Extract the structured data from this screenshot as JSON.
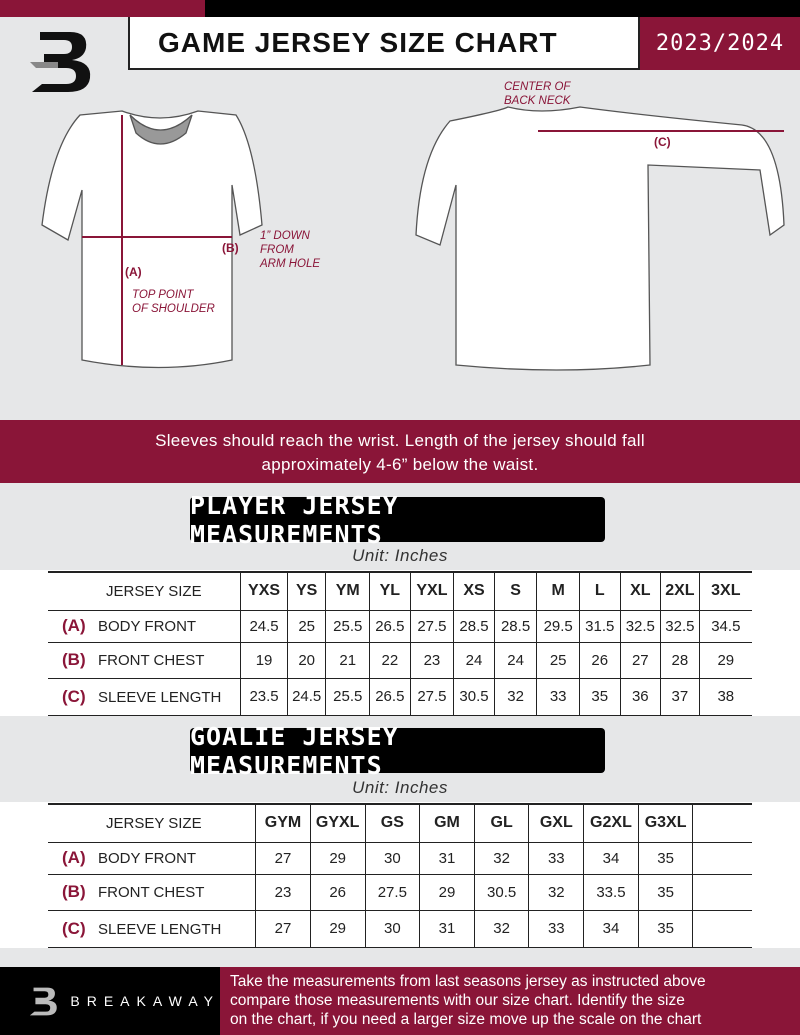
{
  "header": {
    "title": "GAME JERSEY SIZE CHART",
    "season": "2023/2024",
    "logo_letter": "B"
  },
  "diagram": {
    "a_label": "(A)",
    "a_note": [
      "TOP POINT",
      "OF SHOULDER"
    ],
    "b_label": "(B)",
    "b_note": [
      "1” DOWN",
      "FROM",
      "ARM HOLE"
    ],
    "c_label": "(C)",
    "c_note": [
      "CENTER OF",
      "BACK NECK"
    ]
  },
  "banner": [
    "Sleeves should reach the wrist. Length of the jersey should fall",
    "approximately 4-6” below the waist."
  ],
  "player": {
    "heading": "PLAYER JERSEY MEASUREMENTS",
    "unit": "Unit: Inches",
    "size_header": "JERSEY SIZE",
    "sizes": [
      "YXS",
      "YS",
      "YM",
      "YL",
      "YXL",
      "XS",
      "S",
      "M",
      "L",
      "XL",
      "2XL",
      "3XL"
    ],
    "rows": [
      {
        "code": "(A)",
        "label": "BODY FRONT",
        "values": [
          "24.5",
          "25",
          "25.5",
          "26.5",
          "27.5",
          "28.5",
          "28.5",
          "29.5",
          "31.5",
          "32.5",
          "32.5",
          "34.5"
        ]
      },
      {
        "code": "(B)",
        "label": "FRONT CHEST",
        "values": [
          "19",
          "20",
          "21",
          "22",
          "23",
          "24",
          "24",
          "25",
          "26",
          "27",
          "28",
          "29"
        ]
      },
      {
        "code": "(C)",
        "label": "SLEEVE LENGTH",
        "values": [
          "23.5",
          "24.5",
          "25.5",
          "26.5",
          "27.5",
          "30.5",
          "32",
          "33",
          "35",
          "36",
          "37",
          "38"
        ]
      }
    ]
  },
  "goalie": {
    "heading": "GOALIE JERSEY MEASUREMENTS",
    "unit": "Unit: Inches",
    "size_header": "JERSEY SIZE",
    "sizes": [
      "GYM",
      "GYXL",
      "GS",
      "GM",
      "GL",
      "GXL",
      "G2XL",
      "G3XL",
      ""
    ],
    "rows": [
      {
        "code": "(A)",
        "label": "BODY FRONT",
        "values": [
          "27",
          "29",
          "30",
          "31",
          "32",
          "33",
          "34",
          "35",
          ""
        ]
      },
      {
        "code": "(B)",
        "label": "FRONT CHEST",
        "values": [
          "23",
          "26",
          "27.5",
          "29",
          "30.5",
          "32",
          "33.5",
          "35",
          ""
        ]
      },
      {
        "code": "(C)",
        "label": "SLEEVE LENGTH",
        "values": [
          "27",
          "29",
          "30",
          "31",
          "32",
          "33",
          "34",
          "35",
          ""
        ]
      }
    ]
  },
  "footer": {
    "brand": "BREAKAWAY",
    "text": [
      "Take the measurements from last seasons jersey as instructed above",
      "compare those measurements  with our size chart. Identify the size",
      "on the chart, if you need a larger size move up the scale on the chart"
    ]
  },
  "colors": {
    "accent": "#8a1538",
    "background": "#e6e7e8"
  }
}
